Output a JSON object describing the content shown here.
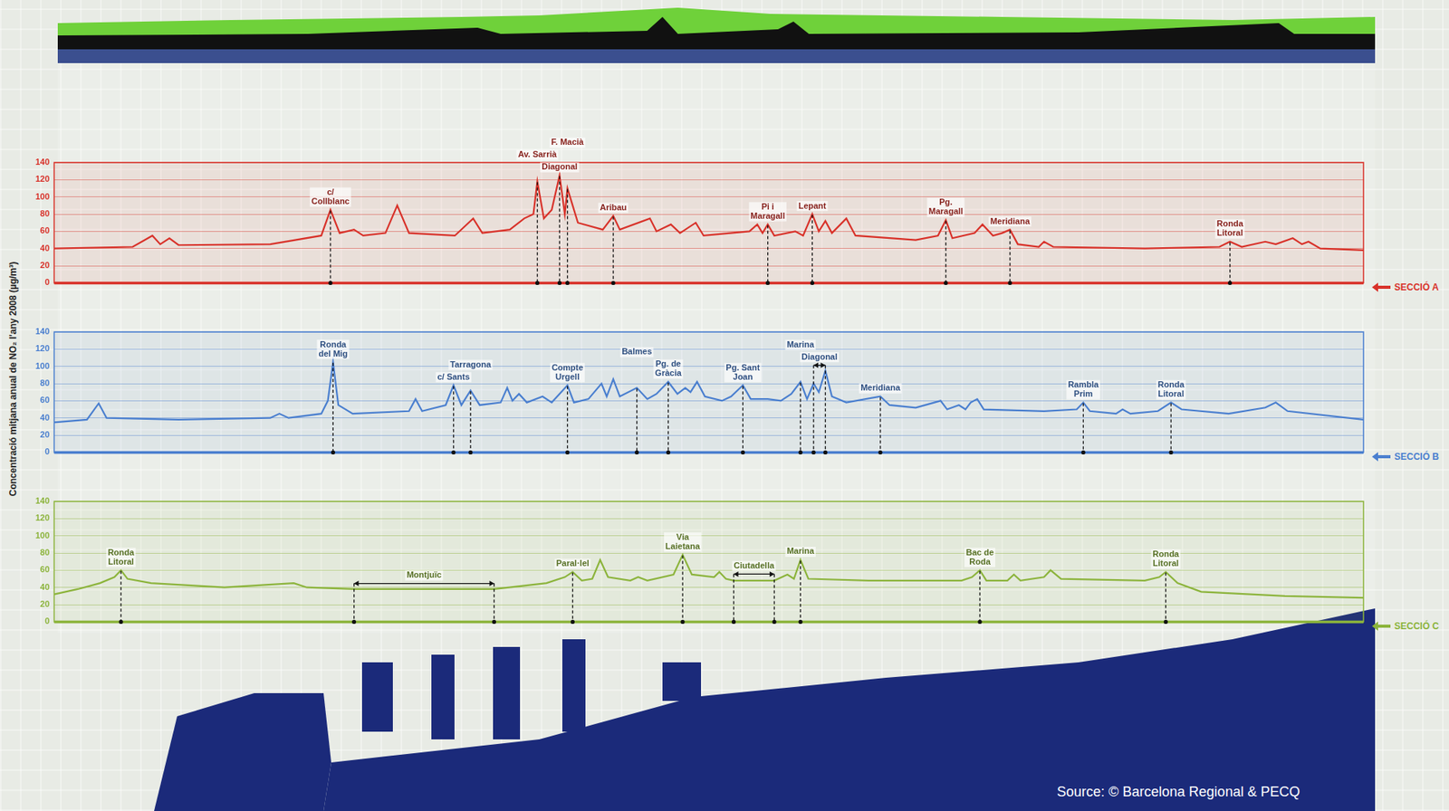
{
  "chart_data": [
    {
      "type": "line",
      "title": "SECCIÓ A",
      "color": "#d8322a",
      "xlim": [
        0,
        100
      ],
      "ylim": [
        0,
        140
      ],
      "yticks": [
        0,
        20,
        40,
        60,
        80,
        100,
        120,
        140
      ],
      "grid": true,
      "tick_labels": "y",
      "x": [
        0,
        6,
        7.5,
        8.1,
        8.8,
        9.5,
        16.5,
        20.4,
        21.1,
        21.8,
        22.9,
        23.6,
        25.3,
        26.2,
        27.1,
        30.6,
        32,
        32.7,
        34.8,
        35.9,
        36.6,
        36.9,
        37.4,
        38,
        38.6,
        39,
        39.2,
        39.6,
        40,
        41.9,
        42.7,
        43.2,
        45.5,
        46,
        47.1,
        47.8,
        49,
        49.6,
        53.1,
        53.7,
        54.1,
        54.5,
        55,
        56.6,
        57.2,
        57.9,
        58.4,
        58.9,
        59.4,
        60.5,
        61.2,
        65.8,
        67.5,
        68.1,
        68.6,
        70.3,
        70.9,
        71.7,
        72.4,
        73,
        73.6,
        75.2,
        75.6,
        76.3,
        83.3,
        89,
        89.8,
        90.7,
        92.5,
        93.3,
        94.6,
        95.3,
        95.8,
        96.7,
        100
      ],
      "values": [
        40,
        42,
        55,
        45,
        52,
        44,
        45,
        55,
        85,
        58,
        62,
        55,
        58,
        90,
        58,
        55,
        75,
        58,
        62,
        75,
        80,
        118,
        75,
        85,
        125,
        80,
        110,
        90,
        70,
        62,
        78,
        62,
        75,
        60,
        68,
        58,
        70,
        55,
        60,
        68,
        58,
        68,
        55,
        60,
        55,
        80,
        60,
        72,
        58,
        75,
        55,
        50,
        55,
        73,
        52,
        58,
        68,
        55,
        58,
        62,
        45,
        42,
        48,
        42,
        40,
        42,
        48,
        42,
        48,
        45,
        52,
        45,
        48,
        40,
        38
      ],
      "annotations": [
        {
          "text": "c/ Collblanc",
          "x": 21.1
        },
        {
          "text": "Av. Sarrià",
          "x": 36.9
        },
        {
          "text": "Diagonal",
          "x": 38.6
        },
        {
          "text": "F. Macià",
          "x": 39.2
        },
        {
          "text": "Aribau",
          "x": 42.7
        },
        {
          "text": "Pi i Maragall",
          "x": 54.5
        },
        {
          "text": "Lepant",
          "x": 57.9
        },
        {
          "text": "Pg. Maragall",
          "x": 68.1
        },
        {
          "text": "Meridiana",
          "x": 73
        },
        {
          "text": "Ronda Litoral",
          "x": 89.8
        }
      ]
    },
    {
      "type": "line",
      "title": "SECCIÓ B",
      "color": "#4a7fcf",
      "xlim": [
        0,
        100
      ],
      "ylim": [
        0,
        140
      ],
      "yticks": [
        0,
        20,
        40,
        60,
        80,
        100,
        120,
        140
      ],
      "grid": true,
      "tick_labels": "y",
      "x": [
        0,
        2.5,
        3.4,
        4,
        9.5,
        16.5,
        17.2,
        17.9,
        20.4,
        20.9,
        21.3,
        21.7,
        22.8,
        27.1,
        27.6,
        28.1,
        29.9,
        30.5,
        31.1,
        31.8,
        32.5,
        34.1,
        34.6,
        35,
        35.5,
        36.1,
        37.3,
        38,
        39.2,
        39.7,
        40.8,
        41.8,
        42.2,
        42.7,
        43.2,
        44.5,
        45.3,
        46,
        46.9,
        47.6,
        48.2,
        48.6,
        49.1,
        49.7,
        51,
        51.7,
        52.6,
        53.2,
        54.5,
        55.5,
        56.3,
        57,
        57.5,
        58,
        58.4,
        58.9,
        59.4,
        60.5,
        63.1,
        63.8,
        65.8,
        67.7,
        68.2,
        69.1,
        69.6,
        70,
        70.5,
        71,
        75.6,
        78.1,
        78.6,
        79.1,
        81.1,
        81.6,
        82.2,
        84.3,
        85.3,
        86.1,
        89.7,
        92.5,
        93.3,
        94.2,
        100
      ],
      "values": [
        35,
        38,
        57,
        40,
        38,
        40,
        45,
        40,
        45,
        60,
        105,
        55,
        45,
        48,
        62,
        48,
        55,
        78,
        55,
        72,
        55,
        58,
        75,
        60,
        68,
        58,
        65,
        58,
        78,
        58,
        62,
        80,
        65,
        85,
        65,
        75,
        62,
        68,
        82,
        68,
        75,
        70,
        82,
        65,
        60,
        65,
        78,
        62,
        62,
        60,
        68,
        82,
        62,
        80,
        70,
        95,
        65,
        58,
        65,
        55,
        52,
        60,
        50,
        55,
        50,
        58,
        62,
        50,
        48,
        50,
        58,
        48,
        45,
        50,
        45,
        48,
        58,
        50,
        45,
        52,
        58,
        48,
        38
      ],
      "annotations": [
        {
          "text": "Ronda del Mig",
          "x": 21.3
        },
        {
          "text": "c/ Sants",
          "x": 30.5
        },
        {
          "text": "Tarragona",
          "x": 31.8
        },
        {
          "text": "Compte Urgell",
          "x": 39.2
        },
        {
          "text": "Balmes",
          "x": 44.5
        },
        {
          "text": "Pg. de Gràcia",
          "x": 46.9
        },
        {
          "text": "Pg. Sant Joan",
          "x": 52.6
        },
        {
          "text": "Marina",
          "x": 57
        },
        {
          "text": "Diagonal",
          "x": [
            58,
            58.9
          ]
        },
        {
          "text": "Meridiana",
          "x": 63.1
        },
        {
          "text": "Rambla Prim",
          "x": 78.6
        },
        {
          "text": "Ronda Litoral",
          "x": 85.3
        }
      ]
    },
    {
      "type": "line",
      "title": "SECCIÓ C",
      "color": "#8cb43c",
      "xlim": [
        0,
        100
      ],
      "ylim": [
        0,
        140
      ],
      "yticks": [
        0,
        20,
        40,
        60,
        80,
        100,
        120,
        140
      ],
      "grid": true,
      "tick_labels": "y",
      "x": [
        0,
        1.8,
        3.5,
        4.6,
        5.1,
        5.6,
        7.4,
        13,
        18.3,
        19.3,
        22.9,
        33.6,
        37.6,
        39,
        39.6,
        40.3,
        41.1,
        41.7,
        42.3,
        44,
        44.6,
        45.3,
        47.3,
        48,
        48.7,
        50.4,
        50.8,
        51.3,
        51.9,
        55,
        56,
        56.5,
        57,
        57.6,
        62.2,
        69.3,
        70.1,
        70.7,
        71.2,
        72.8,
        73.3,
        73.8,
        75.6,
        76.1,
        76.9,
        83.3,
        84.4,
        84.9,
        85.8,
        87.6,
        94,
        100
      ],
      "values": [
        32,
        38,
        45,
        52,
        60,
        50,
        45,
        40,
        45,
        40,
        38,
        38,
        45,
        52,
        58,
        48,
        50,
        72,
        52,
        48,
        52,
        48,
        55,
        78,
        55,
        52,
        58,
        50,
        48,
        48,
        55,
        50,
        72,
        50,
        48,
        48,
        52,
        60,
        48,
        48,
        55,
        48,
        52,
        60,
        50,
        48,
        52,
        58,
        45,
        35,
        30,
        28
      ],
      "annotations": [
        {
          "text": "Ronda Litoral",
          "x": 5.1
        },
        {
          "text": "Montjuïc",
          "x": [
            22.9,
            33.6
          ]
        },
        {
          "text": "Paral·lel",
          "x": 39.6
        },
        {
          "text": "Via Laietana",
          "x": 48
        },
        {
          "text": "Ciutadella",
          "x": [
            51.9,
            55
          ]
        },
        {
          "text": "Marina",
          "x": 57
        },
        {
          "text": "Bac de Roda",
          "x": 70.7
        },
        {
          "text": "Ronda Litoral",
          "x": 84.9
        }
      ]
    }
  ],
  "ylabel": "Concentració mitjana anual de NO₂ l'any 2008 (µg/m³)",
  "source": "Source: © Barcelona Regional  &  PECQ"
}
